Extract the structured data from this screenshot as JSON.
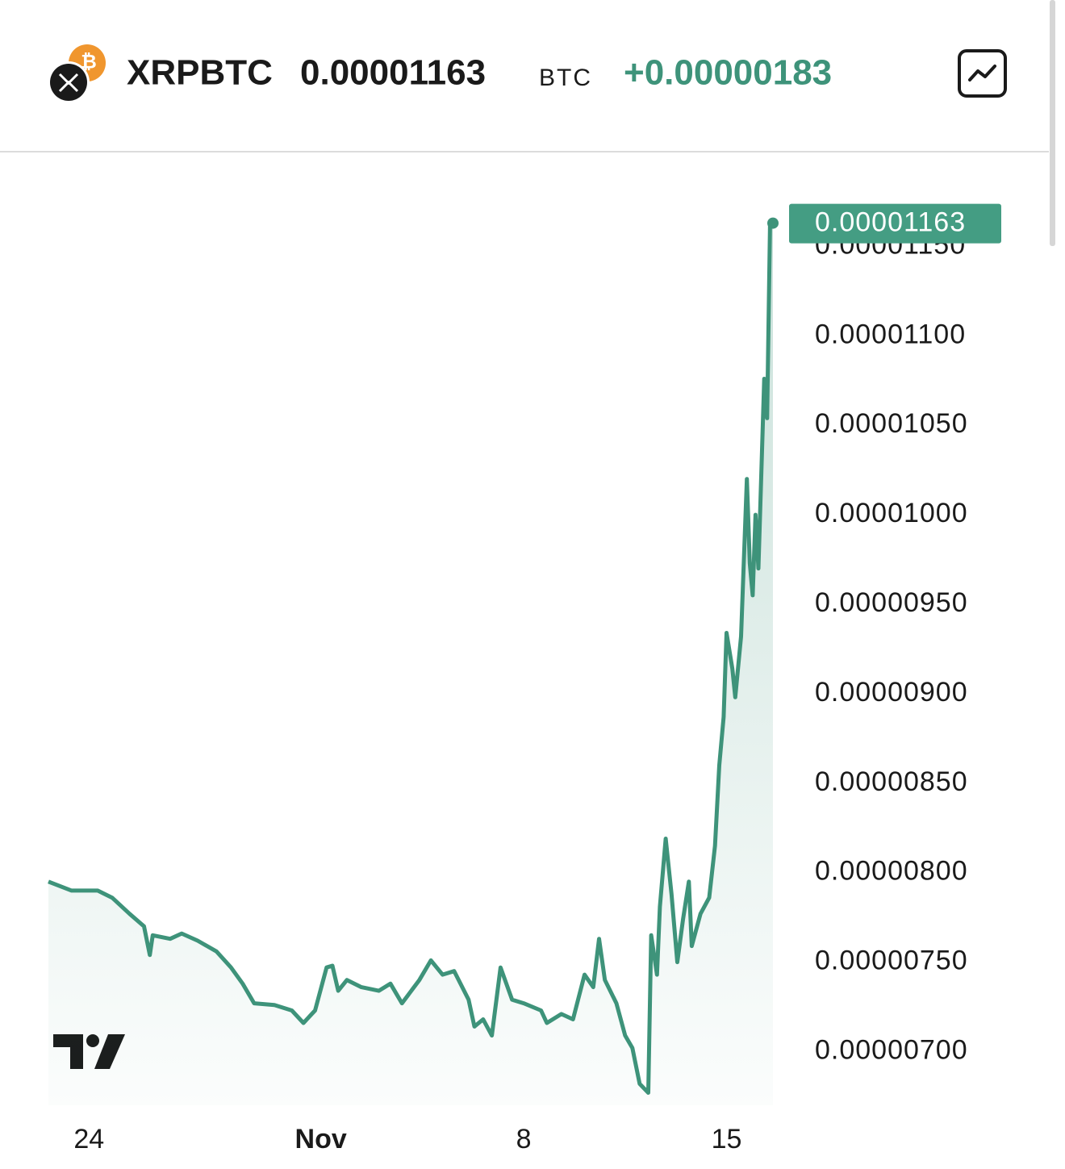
{
  "header": {
    "symbol": "XRPBTC",
    "price": "0.00001163",
    "unit": "BTC",
    "change": "+0.00000183"
  },
  "chart_data": {
    "type": "area",
    "color": "#3e937a",
    "grid": false,
    "x": [
      -1.4,
      -0.6,
      0.3,
      0.8,
      1.4,
      1.9,
      2.1,
      2.2,
      2.8,
      3.2,
      3.75,
      4.4,
      4.9,
      5.3,
      5.7,
      6.4,
      7.0,
      7.4,
      7.8,
      8.2,
      8.4,
      8.6,
      8.9,
      9.4,
      10.0,
      10.4,
      10.8,
      11.4,
      11.8,
      12.2,
      12.6,
      13.1,
      13.3,
      13.6,
      13.9,
      14.2,
      14.6,
      15.0,
      15.6,
      15.8,
      16.3,
      16.7,
      17.1,
      17.4,
      17.6,
      17.8,
      18.2,
      18.5,
      18.75,
      19.0,
      19.3,
      19.4,
      19.6,
      19.7,
      19.9,
      20.1,
      20.3,
      20.5,
      20.7,
      20.8,
      21.1,
      21.4,
      21.6,
      21.75,
      21.9,
      22.0,
      22.2,
      22.3,
      22.5,
      22.7,
      22.8,
      22.9,
      23.0,
      23.1,
      23.3,
      23.4,
      23.5,
      23.6
    ],
    "series": [
      {
        "values": [
          7.95e-06,
          7.9e-06,
          7.9e-06,
          7.86e-06,
          7.77e-06,
          7.7e-06,
          7.54e-06,
          7.65e-06,
          7.63e-06,
          7.66e-06,
          7.62e-06,
          7.56e-06,
          7.47e-06,
          7.38e-06,
          7.27e-06,
          7.26e-06,
          7.23e-06,
          7.16e-06,
          7.23e-06,
          7.47e-06,
          7.48e-06,
          7.34e-06,
          7.4e-06,
          7.36e-06,
          7.34e-06,
          7.38e-06,
          7.27e-06,
          7.4e-06,
          7.51e-06,
          7.43e-06,
          7.45e-06,
          7.29e-06,
          7.14e-06,
          7.18e-06,
          7.09e-06,
          7.47e-06,
          7.29e-06,
          7.27e-06,
          7.23e-06,
          7.16e-06,
          7.21e-06,
          7.18e-06,
          7.43e-06,
          7.36e-06,
          7.63e-06,
          7.4e-06,
          7.27e-06,
          7.09e-06,
          7.02e-06,
          6.82e-06,
          6.77e-06,
          7.65e-06,
          7.43e-06,
          7.81e-06,
          8.19e-06,
          7.88e-06,
          7.5e-06,
          7.74e-06,
          7.95e-06,
          7.59e-06,
          7.77e-06,
          7.86e-06,
          8.15e-06,
          8.6e-06,
          8.87e-06,
          9.34e-06,
          9.14e-06,
          8.98e-06,
          9.32e-06,
          1.02e-05,
          9.73e-06,
          9.55e-06,
          1e-05,
          9.7e-06,
          1.076e-05,
          1.054e-05,
          1.162e-05,
          1.163e-05
        ]
      }
    ],
    "xlim": [
      -1.4,
      23.6
    ],
    "xticks": [
      {
        "value": 0,
        "label": "24"
      },
      {
        "value": 8,
        "label": "Nov"
      },
      {
        "value": 15,
        "label": "8"
      },
      {
        "value": 22,
        "label": "15"
      }
    ],
    "ylim": [
      6.7e-06,
      1.184e-05
    ],
    "yticks": [
      {
        "value": 7e-06,
        "label": "0.00000700"
      },
      {
        "value": 7.5e-06,
        "label": "0.00000750"
      },
      {
        "value": 8e-06,
        "label": "0.00000800"
      },
      {
        "value": 8.5e-06,
        "label": "0.00000850"
      },
      {
        "value": 9e-06,
        "label": "0.00000900"
      },
      {
        "value": 9.5e-06,
        "label": "0.00000950"
      },
      {
        "value": 1e-05,
        "label": "0.00001000"
      },
      {
        "value": 1.05e-05,
        "label": "0.00001050"
      },
      {
        "value": 1.1e-05,
        "label": "0.00001100"
      },
      {
        "value": 1.15e-05,
        "label": "0.00001150"
      }
    ]
  }
}
